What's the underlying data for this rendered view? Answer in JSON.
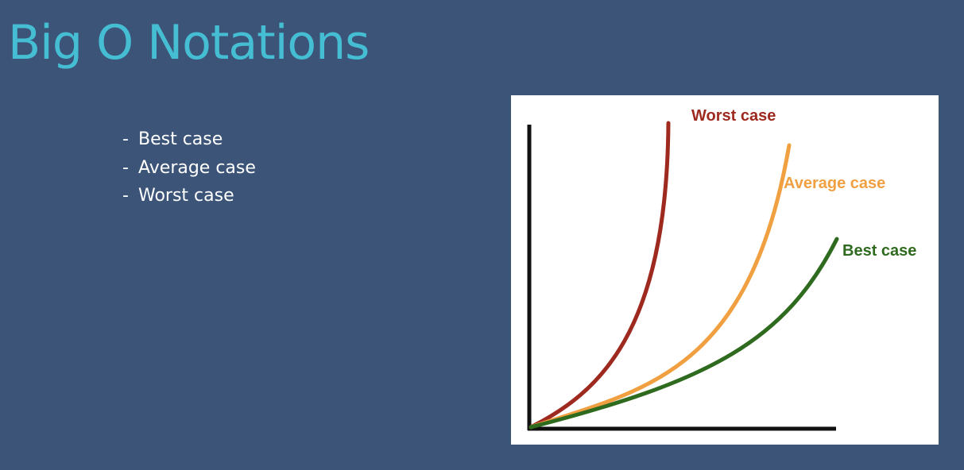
{
  "slide": {
    "title": "Big O Notations",
    "bullets": [
      {
        "dash": "-",
        "text": "Best case"
      },
      {
        "dash": "-",
        "text": "Average case"
      },
      {
        "dash": "-",
        "text": "Worst case"
      }
    ]
  },
  "diagram": {
    "curves": [
      {
        "label": "Worst case",
        "color": "#9e2a1f"
      },
      {
        "label": "Average case",
        "color": "#f0a040"
      },
      {
        "label": "Best case",
        "color": "#2f6b1f"
      }
    ],
    "axis_color": "#111111"
  },
  "colors": {
    "background": "#3b5478",
    "title": "#45bed4",
    "bullet_text": "#ffffff",
    "figure_background": "#ffffff"
  }
}
